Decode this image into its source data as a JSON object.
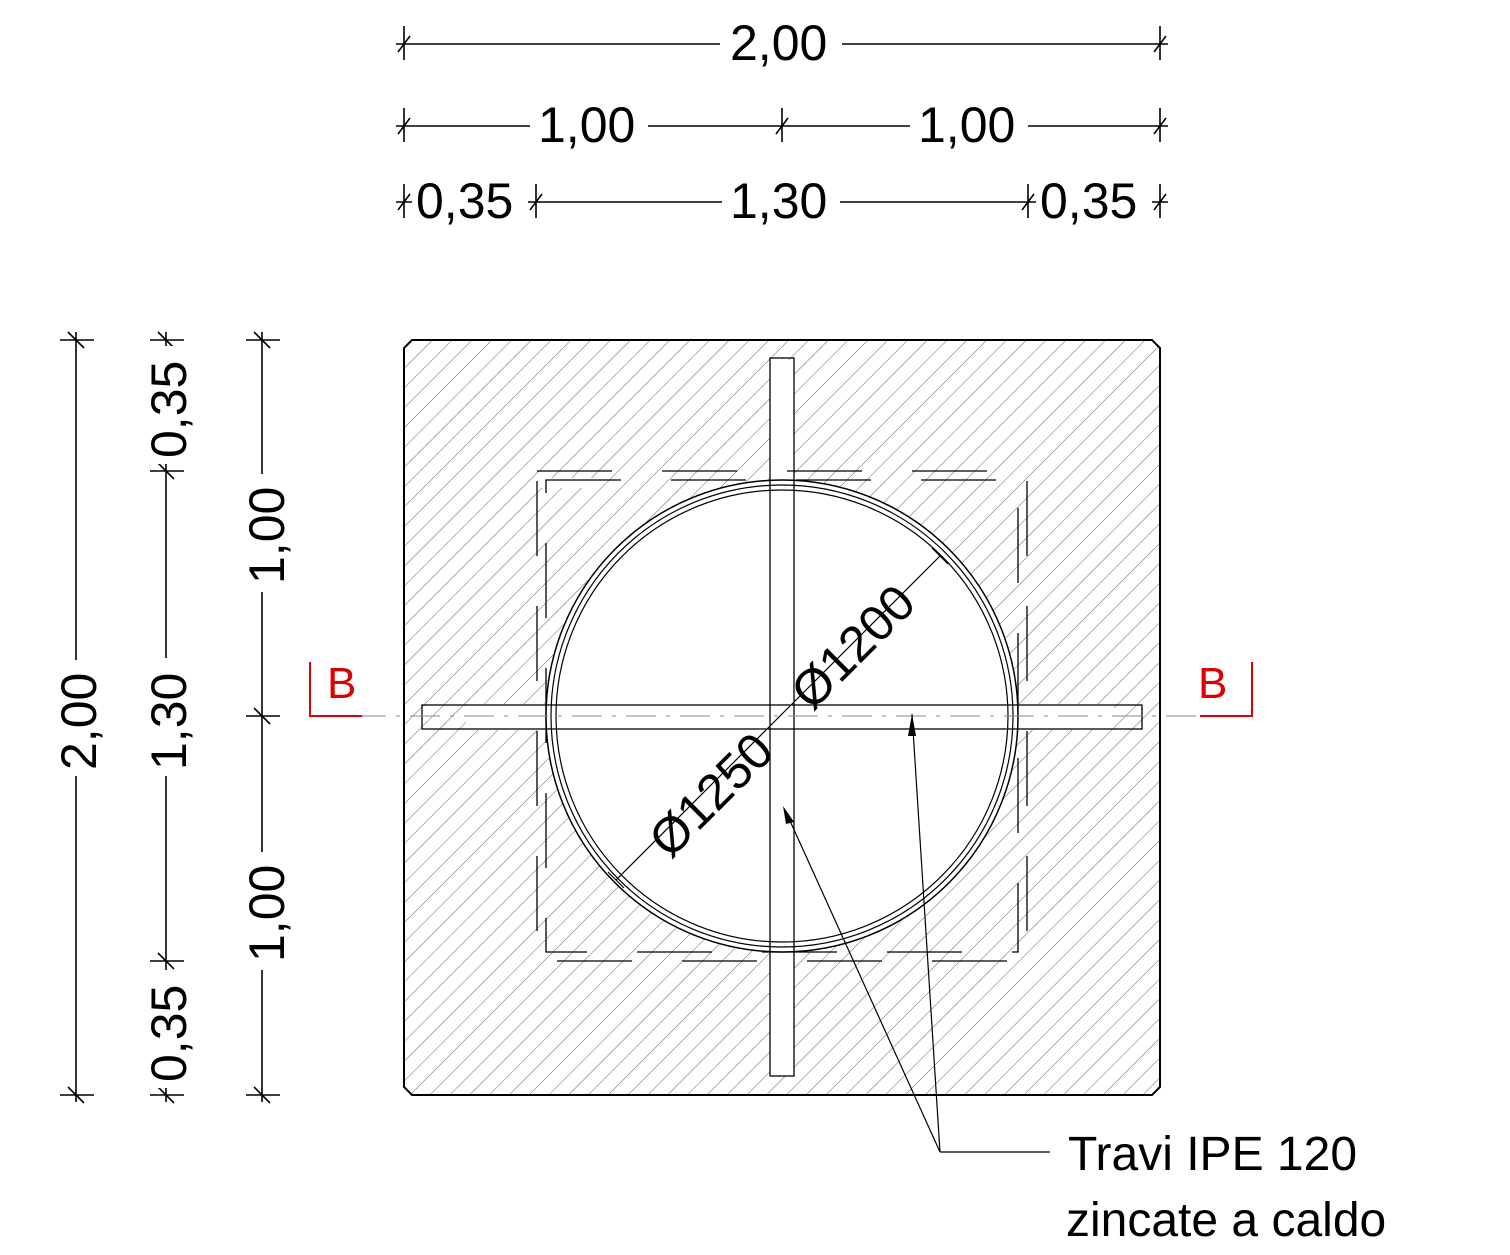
{
  "dimensions": {
    "top_total": "2,00",
    "top_half_left": "1,00",
    "top_half_right": "1,00",
    "top_left_edge": "0,35",
    "top_center": "1,30",
    "top_right_edge": "0,35",
    "left_total": "2,00",
    "left_edge_top": "0,35",
    "left_center": "1,30",
    "left_edge_bottom": "0,35",
    "left_half_top": "1,00",
    "left_half_bottom": "1,00"
  },
  "diameters": {
    "inner": "Ø1200",
    "outer": "Ø1250"
  },
  "section": {
    "left": "B",
    "right": "B"
  },
  "note": {
    "line1": "Travi IPE 120",
    "line2": "zincate a caldo"
  },
  "colors": {
    "section_marker": "#e00000",
    "linework": "#000000"
  }
}
